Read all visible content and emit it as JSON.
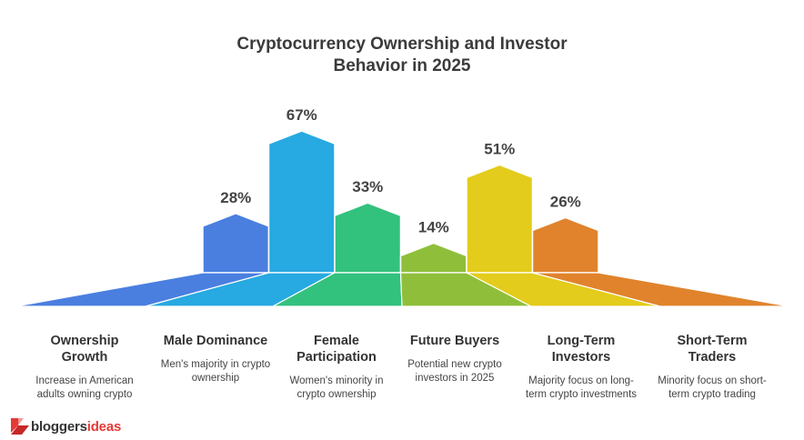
{
  "title_line1": "Cryptocurrency Ownership and Investor",
  "title_line2": "Behavior in 2025",
  "chart_data": {
    "type": "bar",
    "title": "Cryptocurrency Ownership and Investor Behavior in 2025",
    "categories": [
      "Ownership Growth",
      "Male Dominance",
      "Female Participation",
      "Future Buyers",
      "Long-Term Investors",
      "Short-Term Traders"
    ],
    "values": [
      28,
      67,
      33,
      14,
      51,
      26
    ],
    "value_labels": [
      "28%",
      "67%",
      "33%",
      "14%",
      "51%",
      "26%"
    ],
    "colors": [
      "#4a7fe0",
      "#27a9e1",
      "#33c17e",
      "#8fbf3a",
      "#e3cc1b",
      "#e0832c"
    ],
    "ylim": [
      0,
      67
    ],
    "grid": false
  },
  "categories": [
    {
      "title_l1": "Ownership",
      "title_l2": "Growth",
      "desc_l1": "Increase in American",
      "desc_l2": "adults owning crypto"
    },
    {
      "title_l1": "Male Dominance",
      "title_l2": "",
      "desc_l1": "Men's majority in crypto",
      "desc_l2": "ownership"
    },
    {
      "title_l1": "Female",
      "title_l2": "Participation",
      "desc_l1": "Women's minority in",
      "desc_l2": "crypto ownership"
    },
    {
      "title_l1": "Future Buyers",
      "title_l2": "",
      "desc_l1": "Potential new crypto",
      "desc_l2": "investors in 2025"
    },
    {
      "title_l1": "Long-Term",
      "title_l2": "Investors",
      "desc_l1": "Majority focus on long-",
      "desc_l2": "term crypto investments"
    },
    {
      "title_l1": "Short-Term",
      "title_l2": "Traders",
      "desc_l1": "Minority focus on short-",
      "desc_l2": "term crypto trading"
    }
  ],
  "logo": {
    "part1": "bloggers",
    "part2": "ideas",
    "icon": "bloggersideas-logo-icon"
  }
}
